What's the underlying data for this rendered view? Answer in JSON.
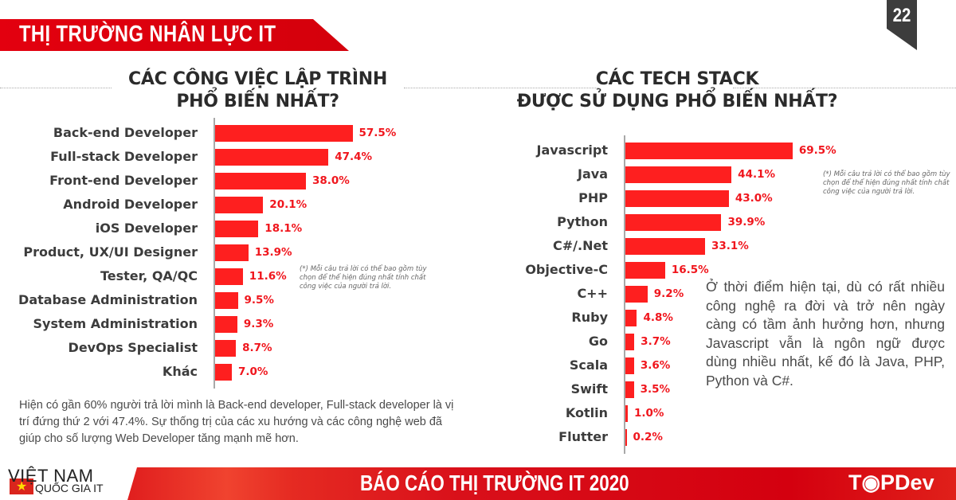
{
  "header": {
    "banner": "THỊ TRƯỜNG NHÂN LỰC IT",
    "page_number": "22"
  },
  "footer": {
    "logo_title": "VIỆT NAM",
    "logo_subtitle": "QUỐC GIA IT",
    "report_title": "BÁO CÁO THỊ TRƯỜNG IT 2020",
    "brand": "T◉PDev"
  },
  "left_panel": {
    "title_line1": "CÁC CÔNG VIỆC LẬP TRÌNH",
    "title_line2": "PHỔ BIẾN NHẤT?",
    "note": "(*) Mỗi câu trả lời có thể bao gồm tùy chọn để thể hiện đúng nhất tính chất công việc của người trả lời.",
    "paragraph": "Hiện có gần 60% người trả lời mình là Back-end developer, Full-stack developer là vị trí đứng thứ 2 với 47.4%. Sự thống trị của các xu hướng và các công nghệ web đã giúp cho số lượng Web Developer tăng mạnh mẽ hơn."
  },
  "right_panel": {
    "title_line1": "CÁC TECH STACK",
    "title_line2": "ĐƯỢC SỬ DỤNG PHỔ BIẾN NHẤT?",
    "note": "(*) Mỗi câu trả lời có thể bao gồm tùy chọn để thể hiện đúng nhất tính chất công việc của người trả lời.",
    "paragraph": "Ở thời điểm hiện tại, dù có rất nhiều công nghệ ra đời và trở nên ngày càng có tầm ảnh hưởng hơn, nhưng Javascript vẫn là ngôn ngữ được dùng nhiều nhất, kế đó là Java, PHP, Python và C#."
  },
  "colors": {
    "bar": "#fe1f1f",
    "value_text": "#f0161d",
    "banner": "#e3000f",
    "page_tag": "#3d3d3d"
  },
  "chart_data": [
    {
      "type": "bar",
      "orientation": "horizontal",
      "title": "CÁC CÔNG VIỆC LẬP TRÌNH PHỔ BIẾN NHẤT?",
      "categories": [
        "Back-end Developer",
        "Full-stack Developer",
        "Front-end Developer",
        "Android Developer",
        "iOS Developer",
        "Product, UX/UI Designer",
        "Tester, QA/QC",
        "Database Administration",
        "System Administration",
        "DevOps Specialist",
        "Khác"
      ],
      "values": [
        57.5,
        47.4,
        38.0,
        20.1,
        18.1,
        13.9,
        11.6,
        9.5,
        9.3,
        8.7,
        7.0
      ],
      "labels": [
        "57.5%",
        "47.4%",
        "38.0%",
        "20.1%",
        "18.1%",
        "13.9%",
        "11.6%",
        "9.5%",
        "9.3%",
        "8.7%",
        "7.0%"
      ],
      "unit": "%",
      "xlabel": "",
      "ylabel": "",
      "grid": false,
      "legend": "none"
    },
    {
      "type": "bar",
      "orientation": "horizontal",
      "title": "CÁC TECH STACK ĐƯỢC SỬ DỤNG PHỔ BIẾN NHẤT?",
      "categories": [
        "Javascript",
        "Java",
        "PHP",
        "Python",
        "C#/.Net",
        "Objective-C",
        "C++",
        "Ruby",
        "Go",
        "Scala",
        "Swift",
        "Kotlin",
        "Flutter"
      ],
      "values": [
        69.5,
        44.1,
        43.0,
        39.9,
        33.1,
        16.5,
        9.2,
        4.8,
        3.7,
        3.6,
        3.5,
        1.0,
        0.2
      ],
      "labels": [
        "69.5%",
        "44.1%",
        "43.0%",
        "39.9%",
        "33.1%",
        "16.5%",
        "9.2%",
        "4.8%",
        "3.7%",
        "3.6%",
        "3.5%",
        "1.0%",
        "0.2%"
      ],
      "unit": "%",
      "xlabel": "",
      "ylabel": "",
      "grid": false,
      "legend": "none"
    }
  ]
}
